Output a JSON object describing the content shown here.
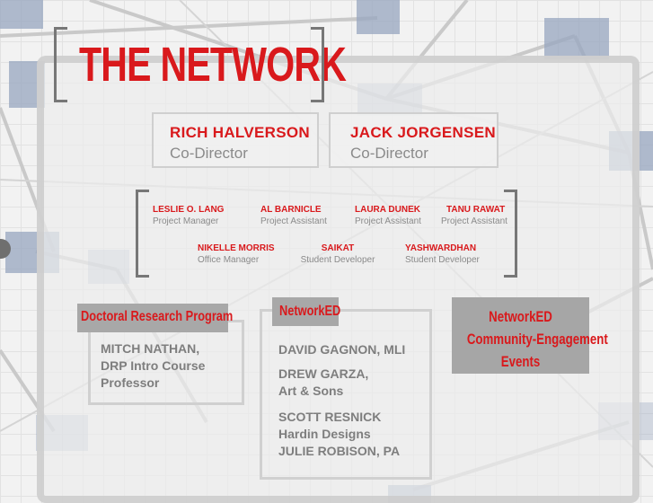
{
  "title": "THE NETWORK",
  "directors": [
    {
      "name": "RICH HALVERSON",
      "role": "Co-Director"
    },
    {
      "name": "JACK JORGENSEN",
      "role": "Co-Director"
    }
  ],
  "staff": [
    {
      "name": "LESLIE O. LANG",
      "role": "Project Manager"
    },
    {
      "name": "AL BARNICLE",
      "role": "Project Assistant"
    },
    {
      "name": "LAURA DUNEK",
      "role": "Project Assistant"
    },
    {
      "name": "TANU RAWAT",
      "role": "Project Assistant"
    },
    {
      "name": "NIKELLE MORRIS",
      "role": "Office Manager"
    },
    {
      "name": "SAIKAT",
      "role": "Student Developer"
    },
    {
      "name": "YASHWARDHAN",
      "role": "Student Developer"
    }
  ],
  "drp": {
    "label": "Doctoral Research Program",
    "people": [
      "MITCH NATHAN,",
      "DRP Intro Course",
      "Professor"
    ]
  },
  "networked": {
    "label": "NetworkED",
    "people": [
      "DAVID GAGNON, MLI",
      "DREW GARZA,",
      "Art & Sons",
      "SCOTT RESNICK",
      "Hardin Designs",
      "JULIE ROBISON, PA"
    ]
  },
  "community": {
    "label_lines": [
      "NetworkED",
      "Community-Engagement",
      "Events"
    ]
  },
  "colors": {
    "accent": "#d9191c",
    "muted": "#8a8a8a",
    "label_bg": "#a8a8a8"
  }
}
